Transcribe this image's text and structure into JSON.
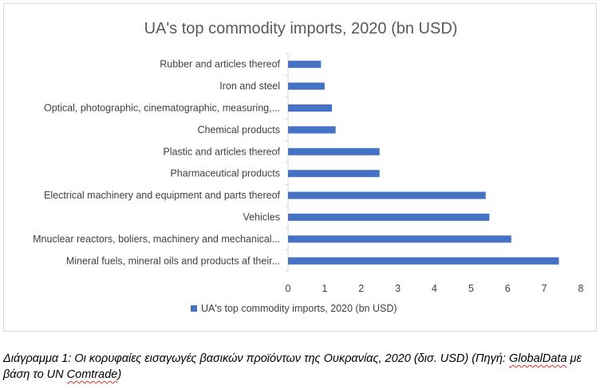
{
  "chart_data": {
    "type": "bar",
    "orientation": "horizontal",
    "title": "UA's top commodity imports, 2020 (bn USD)",
    "categories": [
      "Rubber and articles thereof",
      "Iron and steel",
      "Optical, photographic, cinematographic, measuring,...",
      "Chemical products",
      "Plastic and articles thereof",
      "Pharmaceutical products",
      "Electrical machinery and equipment and parts thereof",
      "Vehicles",
      "Mnuclear reactors, boliers, machinery and mechanical...",
      "Mineral fuels, mineral oils and products af their..."
    ],
    "series": [
      {
        "name": "UA's top commodity imports, 2020 (bn USD)",
        "values": [
          0.9,
          1.0,
          1.2,
          1.3,
          2.5,
          2.5,
          5.4,
          5.5,
          6.1,
          7.4
        ],
        "color": "#4472c4"
      }
    ],
    "xticks": [
      "0",
      "1",
      "2",
      "3",
      "4",
      "5",
      "6",
      "7",
      "8"
    ],
    "xlim": [
      0,
      8
    ],
    "grid": false,
    "legend_position": "bottom"
  },
  "caption": {
    "text_part1": "Διάγραμμα 1: Οι κορυφαίες εισαγωγές βασικών προϊόντων της Ουκρανίας, 2020 (δισ. USD) (Πηγή: ",
    "squiggle1": "GlobalData",
    "text_part2": " με βάση το UN ",
    "squiggle2": "Comtrade",
    "text_part3": ")"
  }
}
